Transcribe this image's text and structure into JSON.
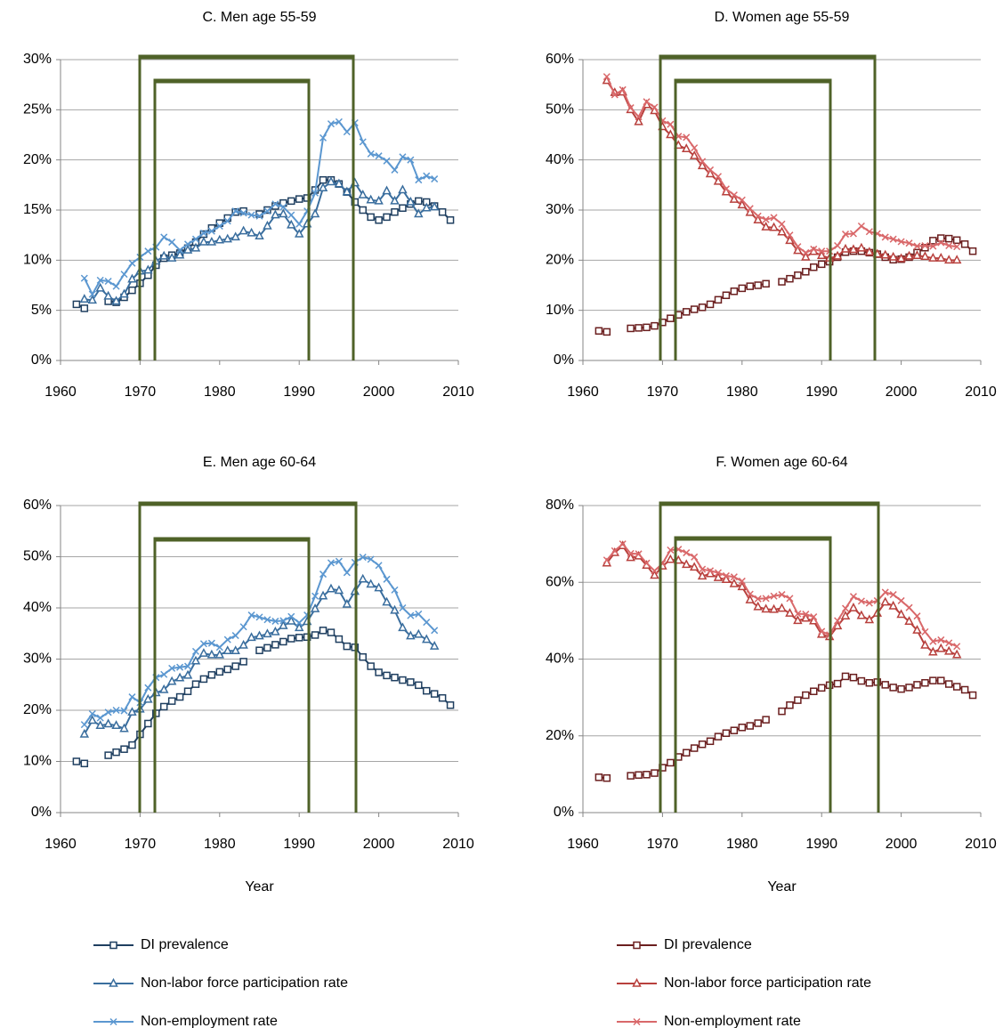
{
  "chart_data": [
    {
      "type": "line",
      "title": "C. Men age 55-59",
      "x": [
        1962,
        1963,
        1964,
        1965,
        1966,
        1967,
        1968,
        1969,
        1970,
        1971,
        1972,
        1973,
        1974,
        1975,
        1976,
        1977,
        1978,
        1979,
        1980,
        1981,
        1982,
        1983,
        1984,
        1985,
        1986,
        1987,
        1988,
        1989,
        1990,
        1991,
        1992,
        1993,
        1994,
        1995,
        1996,
        1997,
        1998,
        1999,
        2000,
        2001,
        2002,
        2003,
        2004,
        2005,
        2006,
        2007,
        2008,
        2009
      ],
      "xlim": [
        1960,
        2010
      ],
      "xticks": [
        1960,
        1970,
        1980,
        1990,
        2000,
        2010
      ],
      "ylim": [
        0,
        30
      ],
      "yticks": [
        {
          "value": 0,
          "label": "0%"
        },
        {
          "value": 5,
          "label": "5%"
        },
        {
          "value": 10,
          "label": "10%"
        },
        {
          "value": 15,
          "label": "15%"
        },
        {
          "value": 20,
          "label": "20%"
        },
        {
          "value": 25,
          "label": "25%"
        },
        {
          "value": 30,
          "label": "30%"
        }
      ],
      "grid": true,
      "series": [
        {
          "color": "#1f3f60",
          "marker": "square",
          "values": [
            5.6,
            5.2,
            null,
            null,
            5.9,
            5.8,
            6.3,
            7.0,
            7.7,
            8.5,
            9.5,
            10.2,
            10.5,
            10.7,
            11.2,
            11.8,
            12.6,
            13.2,
            13.7,
            14.2,
            14.8,
            14.9,
            null,
            14.6,
            15.0,
            15.4,
            15.7,
            15.9,
            16.1,
            16.2,
            17.0,
            18.0,
            18.0,
            17.6,
            16.8,
            15.8,
            15.0,
            14.3,
            14.0,
            14.3,
            14.8,
            15.2,
            15.6,
            15.9,
            15.8,
            15.4,
            14.8,
            14.0
          ]
        },
        {
          "color": "#3a6e9e",
          "marker": "triangle",
          "values": [
            null,
            6.1,
            6.0,
            7.2,
            6.4,
            5.9,
            6.6,
            8.1,
            8.9,
            9.0,
            9.9,
            10.4,
            10.2,
            10.5,
            11.0,
            11.2,
            11.8,
            11.8,
            12.0,
            12.1,
            12.3,
            12.9,
            12.7,
            12.4,
            13.4,
            14.5,
            14.6,
            13.5,
            12.6,
            13.6,
            14.6,
            17.2,
            17.8,
            17.6,
            16.8,
            17.7,
            16.5,
            16.0,
            15.9,
            16.9,
            15.9,
            17.0,
            15.8,
            14.6,
            15.2,
            15.3,
            null,
            null
          ]
        },
        {
          "color": "#5b97d0",
          "marker": "x",
          "values": [
            null,
            8.2,
            6.6,
            8.0,
            7.9,
            7.4,
            8.6,
            9.7,
            10.3,
            10.9,
            11.3,
            12.3,
            11.8,
            11.0,
            11.6,
            12.1,
            12.7,
            12.9,
            13.4,
            13.9,
            14.9,
            14.7,
            14.5,
            14.4,
            14.9,
            15.6,
            15.3,
            14.5,
            13.6,
            14.9,
            16.7,
            22.2,
            23.6,
            23.8,
            22.8,
            23.7,
            21.8,
            20.6,
            20.4,
            19.9,
            19.0,
            20.3,
            20.0,
            18.0,
            18.4,
            18.1,
            null,
            null
          ]
        }
      ]
    },
    {
      "type": "line",
      "title": "D. Women age 55-59",
      "x": [
        1962,
        1963,
        1964,
        1965,
        1966,
        1967,
        1968,
        1969,
        1970,
        1971,
        1972,
        1973,
        1974,
        1975,
        1976,
        1977,
        1978,
        1979,
        1980,
        1981,
        1982,
        1983,
        1984,
        1985,
        1986,
        1987,
        1988,
        1989,
        1990,
        1991,
        1992,
        1993,
        1994,
        1995,
        1996,
        1997,
        1998,
        1999,
        2000,
        2001,
        2002,
        2003,
        2004,
        2005,
        2006,
        2007,
        2008,
        2009
      ],
      "xlim": [
        1960,
        2010
      ],
      "xticks": [
        1960,
        1970,
        1980,
        1990,
        2000,
        2010
      ],
      "ylim": [
        0,
        60
      ],
      "yticks": [
        {
          "value": 0,
          "label": "0%"
        },
        {
          "value": 10,
          "label": "10%"
        },
        {
          "value": 20,
          "label": "20%"
        },
        {
          "value": 30,
          "label": "30%"
        },
        {
          "value": 40,
          "label": "40%"
        },
        {
          "value": 50,
          "label": "50%"
        },
        {
          "value": 60,
          "label": "60%"
        }
      ],
      "grid": true,
      "series": [
        {
          "color": "#6b1f1f",
          "marker": "square",
          "values": [
            5.9,
            5.7,
            null,
            null,
            6.4,
            6.5,
            6.6,
            6.9,
            7.6,
            8.4,
            9.1,
            9.7,
            10.2,
            10.6,
            11.2,
            12.1,
            13.0,
            13.8,
            14.4,
            14.8,
            15.0,
            15.3,
            null,
            15.7,
            16.3,
            17.0,
            17.7,
            18.6,
            19.2,
            19.7,
            20.6,
            21.6,
            21.8,
            21.8,
            21.5,
            21.2,
            20.6,
            20.1,
            20.2,
            20.6,
            21.5,
            22.5,
            23.9,
            24.4,
            24.3,
            24.0,
            23.2,
            21.8
          ]
        },
        {
          "color": "#b8403d",
          "marker": "triangle",
          "values": [
            null,
            55.8,
            53.4,
            53.5,
            50.0,
            47.6,
            51.0,
            49.8,
            46.6,
            45.0,
            42.9,
            42.2,
            40.8,
            38.8,
            37.2,
            35.7,
            33.6,
            32.1,
            31.0,
            29.5,
            28.0,
            26.6,
            26.5,
            25.6,
            23.9,
            21.9,
            20.6,
            21.7,
            20.9,
            20.4,
            20.8,
            22.2,
            22.1,
            22.4,
            21.6,
            21.2,
            21.0,
            20.6,
            20.3,
            20.8,
            20.9,
            20.7,
            20.4,
            20.4,
            20.0,
            20.0,
            null,
            null
          ]
        },
        {
          "color": "#d9686a",
          "marker": "x",
          "values": [
            null,
            56.6,
            53.0,
            54.0,
            50.4,
            48.6,
            51.6,
            50.5,
            47.8,
            47.1,
            44.7,
            44.5,
            42.4,
            39.7,
            38.0,
            36.7,
            34.2,
            33.0,
            32.0,
            30.3,
            28.8,
            28.1,
            28.5,
            27.2,
            25.0,
            22.7,
            21.5,
            22.2,
            21.8,
            21.8,
            22.9,
            25.2,
            25.3,
            26.8,
            25.7,
            25.3,
            24.6,
            24.2,
            23.7,
            23.4,
            22.8,
            22.9,
            22.8,
            23.5,
            22.9,
            22.7,
            null,
            null
          ]
        }
      ]
    },
    {
      "type": "line",
      "title": "E. Men age 60-64",
      "xlabel": "Year",
      "legend": "bottom",
      "x": [
        1962,
        1963,
        1964,
        1965,
        1966,
        1967,
        1968,
        1969,
        1970,
        1971,
        1972,
        1973,
        1974,
        1975,
        1976,
        1977,
        1978,
        1979,
        1980,
        1981,
        1982,
        1983,
        1984,
        1985,
        1986,
        1987,
        1988,
        1989,
        1990,
        1991,
        1992,
        1993,
        1994,
        1995,
        1996,
        1997,
        1998,
        1999,
        2000,
        2001,
        2002,
        2003,
        2004,
        2005,
        2006,
        2007,
        2008,
        2009
      ],
      "xlim": [
        1960,
        2010
      ],
      "xticks": [
        1960,
        1970,
        1980,
        1990,
        2000,
        2010
      ],
      "ylim": [
        0,
        60
      ],
      "yticks": [
        {
          "value": 0,
          "label": "0%"
        },
        {
          "value": 10,
          "label": "10%"
        },
        {
          "value": 20,
          "label": "20%"
        },
        {
          "value": 30,
          "label": "30%"
        },
        {
          "value": 40,
          "label": "40%"
        },
        {
          "value": 50,
          "label": "50%"
        },
        {
          "value": 60,
          "label": "60%"
        }
      ],
      "grid": true,
      "series": [
        {
          "name": "DI prevalence",
          "color": "#1f3f60",
          "marker": "square",
          "values": [
            10.0,
            9.6,
            null,
            null,
            11.2,
            11.8,
            12.4,
            13.2,
            15.3,
            17.4,
            19.4,
            20.7,
            21.8,
            22.6,
            23.7,
            25.1,
            26.1,
            26.9,
            27.5,
            28.0,
            28.6,
            29.5,
            null,
            31.7,
            32.2,
            32.8,
            33.4,
            34.0,
            34.2,
            34.3,
            34.7,
            35.6,
            35.2,
            33.9,
            32.5,
            32.3,
            30.4,
            28.6,
            27.4,
            26.8,
            26.4,
            25.9,
            25.5,
            24.9,
            23.8,
            23.2,
            22.4,
            21.0
          ]
        },
        {
          "name": "Non-labor force participation rate",
          "color": "#3a6e9e",
          "marker": "triangle",
          "values": [
            null,
            15.3,
            18.0,
            17.0,
            17.3,
            17.0,
            16.4,
            19.6,
            20.2,
            22.1,
            23.4,
            24.0,
            25.6,
            26.3,
            26.8,
            29.6,
            31.1,
            30.8,
            30.8,
            31.6,
            31.6,
            32.7,
            34.2,
            34.5,
            34.9,
            35.3,
            36.5,
            37.4,
            36.1,
            37.3,
            39.8,
            42.3,
            43.7,
            43.4,
            40.7,
            43.2,
            45.6,
            44.6,
            43.9,
            41.1,
            39.5,
            36.1,
            34.5,
            34.8,
            33.8,
            32.5,
            null,
            null
          ]
        },
        {
          "name": "Non-employment rate",
          "color": "#5b97d0",
          "marker": "x",
          "values": [
            null,
            17.2,
            19.3,
            18.5,
            19.6,
            20.0,
            19.9,
            22.6,
            21.5,
            24.4,
            26.4,
            27.0,
            28.2,
            28.4,
            28.6,
            31.5,
            33.0,
            33.1,
            32.3,
            33.8,
            34.6,
            36.3,
            38.6,
            38.2,
            37.7,
            37.4,
            37.5,
            38.3,
            37.1,
            38.6,
            42.3,
            46.6,
            48.8,
            49.1,
            46.9,
            48.9,
            49.9,
            49.5,
            48.3,
            45.6,
            43.5,
            40.0,
            38.5,
            38.8,
            37.2,
            35.6,
            null,
            null
          ]
        }
      ]
    },
    {
      "type": "line",
      "title": "F. Women age 60-64",
      "xlabel": "Year",
      "legend": "bottom",
      "x": [
        1962,
        1963,
        1964,
        1965,
        1966,
        1967,
        1968,
        1969,
        1970,
        1971,
        1972,
        1973,
        1974,
        1975,
        1976,
        1977,
        1978,
        1979,
        1980,
        1981,
        1982,
        1983,
        1984,
        1985,
        1986,
        1987,
        1988,
        1989,
        1990,
        1991,
        1992,
        1993,
        1994,
        1995,
        1996,
        1997,
        1998,
        1999,
        2000,
        2001,
        2002,
        2003,
        2004,
        2005,
        2006,
        2007,
        2008,
        2009
      ],
      "xlim": [
        1960,
        2010
      ],
      "xticks": [
        1960,
        1970,
        1980,
        1990,
        2000,
        2010
      ],
      "ylim": [
        0,
        80
      ],
      "yticks": [
        {
          "value": 0,
          "label": "0%"
        },
        {
          "value": 20,
          "label": "20%"
        },
        {
          "value": 40,
          "label": "40%"
        },
        {
          "value": 60,
          "label": "60%"
        },
        {
          "value": 80,
          "label": "80%"
        }
      ],
      "grid": true,
      "series": [
        {
          "name": "DI prevalence",
          "color": "#6b1f1f",
          "marker": "square",
          "values": [
            9.2,
            9.0,
            null,
            null,
            9.6,
            9.8,
            9.9,
            10.3,
            11.7,
            13.0,
            14.5,
            15.6,
            16.8,
            17.8,
            18.6,
            19.8,
            20.7,
            21.4,
            22.2,
            22.6,
            23.3,
            24.2,
            null,
            26.4,
            28.0,
            29.3,
            30.6,
            31.6,
            32.5,
            33.2,
            33.6,
            35.5,
            35.2,
            34.3,
            33.8,
            34.0,
            33.3,
            32.6,
            32.2,
            32.6,
            33.3,
            33.8,
            34.4,
            34.4,
            33.5,
            32.8,
            32.0,
            30.6
          ]
        },
        {
          "name": "Non-labor force participation rate",
          "color": "#b8403d",
          "marker": "triangle",
          "values": [
            null,
            65.0,
            67.7,
            69.5,
            66.4,
            66.8,
            64.4,
            61.8,
            64.2,
            65.9,
            65.7,
            64.6,
            63.9,
            61.6,
            62.2,
            61.2,
            60.7,
            59.6,
            58.8,
            55.4,
            53.6,
            53.0,
            52.9,
            53.2,
            51.9,
            50.0,
            50.6,
            49.9,
            46.4,
            45.8,
            48.6,
            51.2,
            53.3,
            51.3,
            50.2,
            51.9,
            54.8,
            53.8,
            51.6,
            49.8,
            47.5,
            43.6,
            41.8,
            42.7,
            42.0,
            41.1,
            null,
            null
          ]
        },
        {
          "name": "Non-employment rate",
          "color": "#d9686a",
          "marker": "x",
          "values": [
            null,
            65.8,
            68.2,
            70.0,
            67.5,
            67.4,
            65.0,
            63.0,
            64.9,
            68.4,
            68.6,
            67.7,
            66.6,
            63.4,
            63.0,
            62.5,
            61.7,
            61.4,
            60.3,
            56.9,
            55.7,
            55.8,
            56.4,
            56.8,
            55.8,
            51.8,
            51.7,
            51.0,
            47.2,
            46.3,
            50.0,
            53.2,
            56.3,
            55.1,
            54.6,
            55.2,
            57.4,
            56.8,
            55.2,
            53.4,
            51.2,
            47.1,
            44.6,
            45.0,
            44.2,
            43.3,
            null,
            null
          ]
        }
      ]
    }
  ]
}
